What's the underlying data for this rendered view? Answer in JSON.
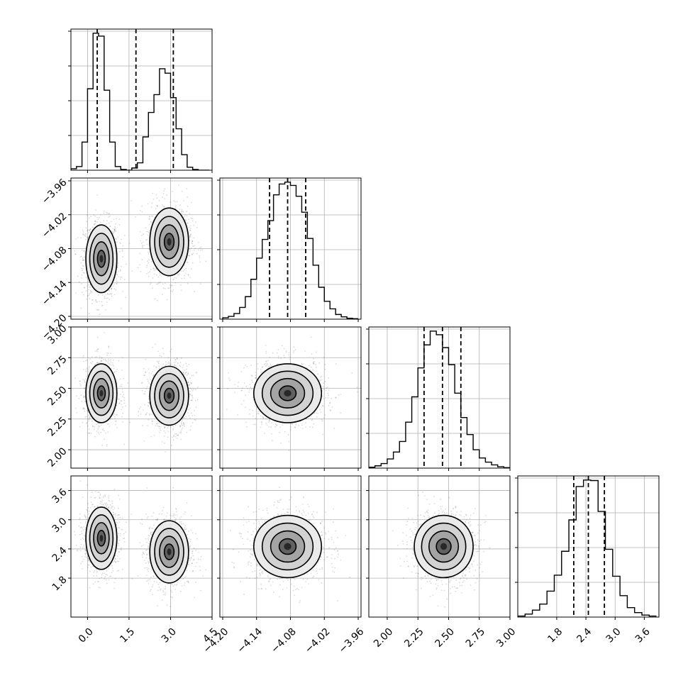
{
  "chart_data": {
    "type": "corner",
    "parameters": [
      {
        "id": "p1",
        "range": [
          -0.6,
          4.5
        ],
        "ticks": [
          0.0,
          1.5,
          3.0,
          4.5
        ],
        "tick_labels": [
          "0.0",
          "1.5",
          "3.0",
          "4.5"
        ],
        "quantiles": [
          0.35,
          1.75,
          3.1
        ],
        "histogram": {
          "bin_edges": [
            -0.6,
            -0.4,
            -0.2,
            0.0,
            0.2,
            0.4,
            0.6,
            0.8,
            1.0,
            1.2,
            1.4,
            1.6,
            1.8,
            2.0,
            2.2,
            2.4,
            2.6,
            2.8,
            3.0,
            3.2,
            3.4,
            3.6,
            3.8,
            4.0,
            4.2,
            4.4
          ],
          "counts": [
            2,
            5,
            38,
            110,
            185,
            181,
            108,
            38,
            5,
            1,
            0,
            3,
            10,
            45,
            78,
            102,
            137,
            131,
            98,
            56,
            21,
            4,
            1,
            0,
            0
          ]
        },
        "modes": [
          {
            "center": 0.5,
            "sigma": 0.28
          },
          {
            "center": 2.95,
            "sigma": 0.35
          }
        ]
      },
      {
        "id": "p2",
        "range": [
          -4.205,
          -3.955
        ],
        "ticks": [
          -4.2,
          -4.14,
          -4.08,
          -4.02,
          -3.96
        ],
        "tick_labels": [
          "−4.20",
          "−4.14",
          "−4.08",
          "−4.02",
          "−3.96"
        ],
        "quantiles": [
          -4.117,
          -4.085,
          -4.053
        ],
        "histogram": {
          "bin_edges": [
            -4.2,
            -4.19,
            -4.18,
            -4.17,
            -4.16,
            -4.15,
            -4.14,
            -4.13,
            -4.12,
            -4.11,
            -4.1,
            -4.09,
            -4.08,
            -4.07,
            -4.06,
            -4.05,
            -4.04,
            -4.03,
            -4.02,
            -4.01,
            -4.0,
            -3.99,
            -3.98,
            -3.97,
            -3.96
          ],
          "counts": [
            3,
            6,
            12,
            25,
            48,
            85,
            130,
            170,
            210,
            265,
            288,
            292,
            285,
            262,
            228,
            172,
            115,
            68,
            38,
            22,
            10,
            5,
            2,
            1
          ]
        },
        "modes": [
          {
            "center": -4.085,
            "sigma": 0.03
          }
        ]
      },
      {
        "id": "p3",
        "range": [
          1.85,
          3.0
        ],
        "ticks": [
          2.0,
          2.25,
          2.5,
          2.75,
          3.0
        ],
        "tick_labels": [
          "2.00",
          "2.25",
          "2.50",
          "2.75",
          "3.00"
        ],
        "quantiles": [
          2.3,
          2.45,
          2.6
        ],
        "histogram": {
          "bin_edges": [
            1.85,
            1.9,
            1.95,
            2.0,
            2.05,
            2.1,
            2.15,
            2.2,
            2.25,
            2.3,
            2.35,
            2.4,
            2.45,
            2.5,
            2.55,
            2.6,
            2.65,
            2.7,
            2.75,
            2.8,
            2.85,
            2.9,
            2.95,
            3.0
          ],
          "counts": [
            2,
            5,
            10,
            20,
            35,
            58,
            100,
            155,
            218,
            268,
            298,
            290,
            262,
            225,
            163,
            110,
            73,
            40,
            22,
            13,
            7,
            3,
            1
          ]
        },
        "modes": [
          {
            "center": 2.46,
            "sigma": 0.12
          }
        ]
      },
      {
        "id": "p4",
        "range": [
          1.0,
          3.9
        ],
        "ticks": [
          1.8,
          2.4,
          3.0,
          3.6
        ],
        "tick_labels": [
          "1.8",
          "2.4",
          "3.0",
          "3.6"
        ],
        "quantiles": [
          2.15,
          2.45,
          2.78
        ],
        "histogram": {
          "bin_edges": [
            1.0,
            1.15,
            1.3,
            1.45,
            1.6,
            1.75,
            1.9,
            2.05,
            2.2,
            2.35,
            2.5,
            2.65,
            2.8,
            2.95,
            3.1,
            3.25,
            3.4,
            3.55,
            3.7,
            3.85
          ],
          "counts": [
            2,
            6,
            14,
            26,
            52,
            84,
            132,
            195,
            262,
            275,
            274,
            212,
            136,
            82,
            43,
            19,
            9,
            4,
            2
          ]
        },
        "modes": [
          {
            "center": 2.45,
            "sigma": 0.32
          }
        ]
      }
    ],
    "joint_modes": {
      "p1": [
        {
          "center": 0.5,
          "sigma": 0.28,
          "p2": -4.098,
          "p3": 2.46,
          "p4": 2.62
        },
        {
          "center": 2.95,
          "sigma": 0.35,
          "p2": -4.068,
          "p3": 2.44,
          "p4": 2.34
        }
      ]
    },
    "grid": true
  }
}
